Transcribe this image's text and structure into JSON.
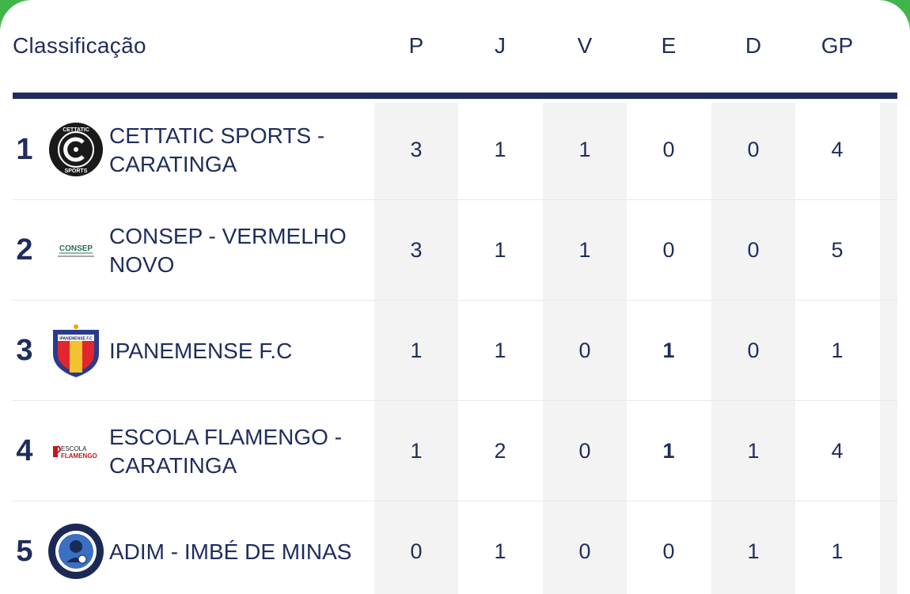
{
  "colors": {
    "accent": "#1f2d5c",
    "frame": "#3fb54a",
    "stripe": "#f3f3f3"
  },
  "header": {
    "title": "Classificação",
    "columns": [
      "P",
      "J",
      "V",
      "E",
      "D",
      "GP"
    ]
  },
  "rows": [
    {
      "pos": "1",
      "team": "CETTATIC SPORTS - CARATINGA",
      "logo": "cettatic-sports-logo",
      "P": "3",
      "J": "1",
      "V": "1",
      "E": "0",
      "D": "0",
      "GP": "4"
    },
    {
      "pos": "2",
      "team": "CONSEP - VERMELHO NOVO",
      "logo": "consep-logo",
      "P": "3",
      "J": "1",
      "V": "1",
      "E": "0",
      "D": "0",
      "GP": "5"
    },
    {
      "pos": "3",
      "team": "IPANEMENSE F.C",
      "logo": "ipanemense-crest-logo",
      "P": "1",
      "J": "1",
      "V": "0",
      "E": "1",
      "D": "0",
      "GP": "1"
    },
    {
      "pos": "4",
      "team": "ESCOLA FLAMENGO - CARATINGA",
      "logo": "escola-flamengo-logo",
      "P": "1",
      "J": "2",
      "V": "0",
      "E": "1",
      "D": "1",
      "GP": "4"
    },
    {
      "pos": "5",
      "team": "ADIM - IMBÉ DE MINAS",
      "logo": "adim-imbe-logo",
      "P": "0",
      "J": "1",
      "V": "0",
      "E": "0",
      "D": "1",
      "GP": "1"
    }
  ]
}
